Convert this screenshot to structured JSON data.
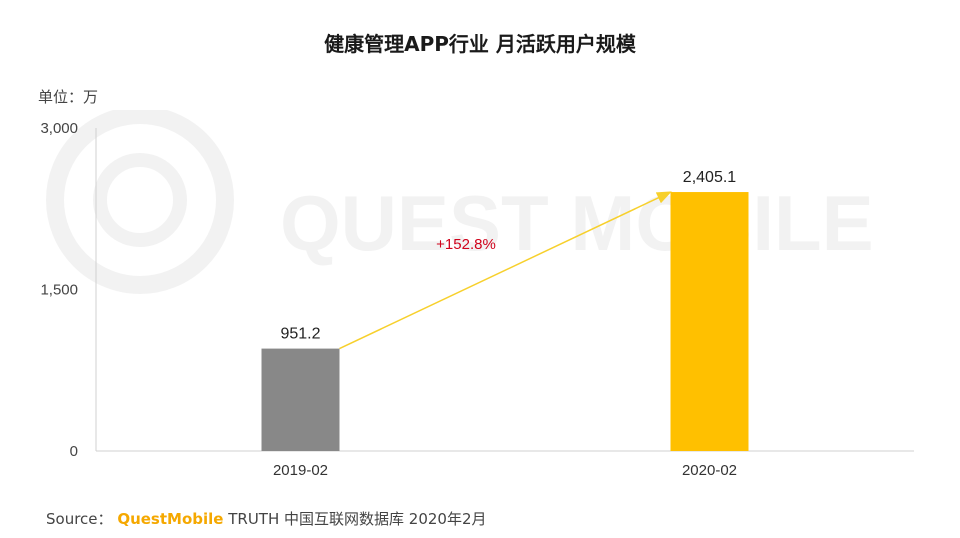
{
  "title": "健康管理APP行业 月活跃用户规模",
  "unit_label": "单位：万",
  "watermark_text": "QUEST MOBILE",
  "source": {
    "prefix": "Source：",
    "brand": "QuestMobile",
    "rest": "TRUTH 中国互联网数据库 2020年2月"
  },
  "chart_data": {
    "type": "bar",
    "categories": [
      "2019-02",
      "2020-02"
    ],
    "values": [
      951.2,
      2405.1
    ],
    "value_labels": [
      "951.2",
      "2,405.1"
    ],
    "bar_colors": [
      "#888888",
      "#ffc000"
    ],
    "ylim": [
      0,
      3000
    ],
    "yticks": [
      0,
      1500,
      3000
    ],
    "ytick_labels": [
      "0",
      "1,500",
      "3,000"
    ],
    "grid": false,
    "annotation": {
      "text": "+152.8%",
      "color": "#d0021b",
      "arrow_color": "#f7d02c"
    }
  }
}
